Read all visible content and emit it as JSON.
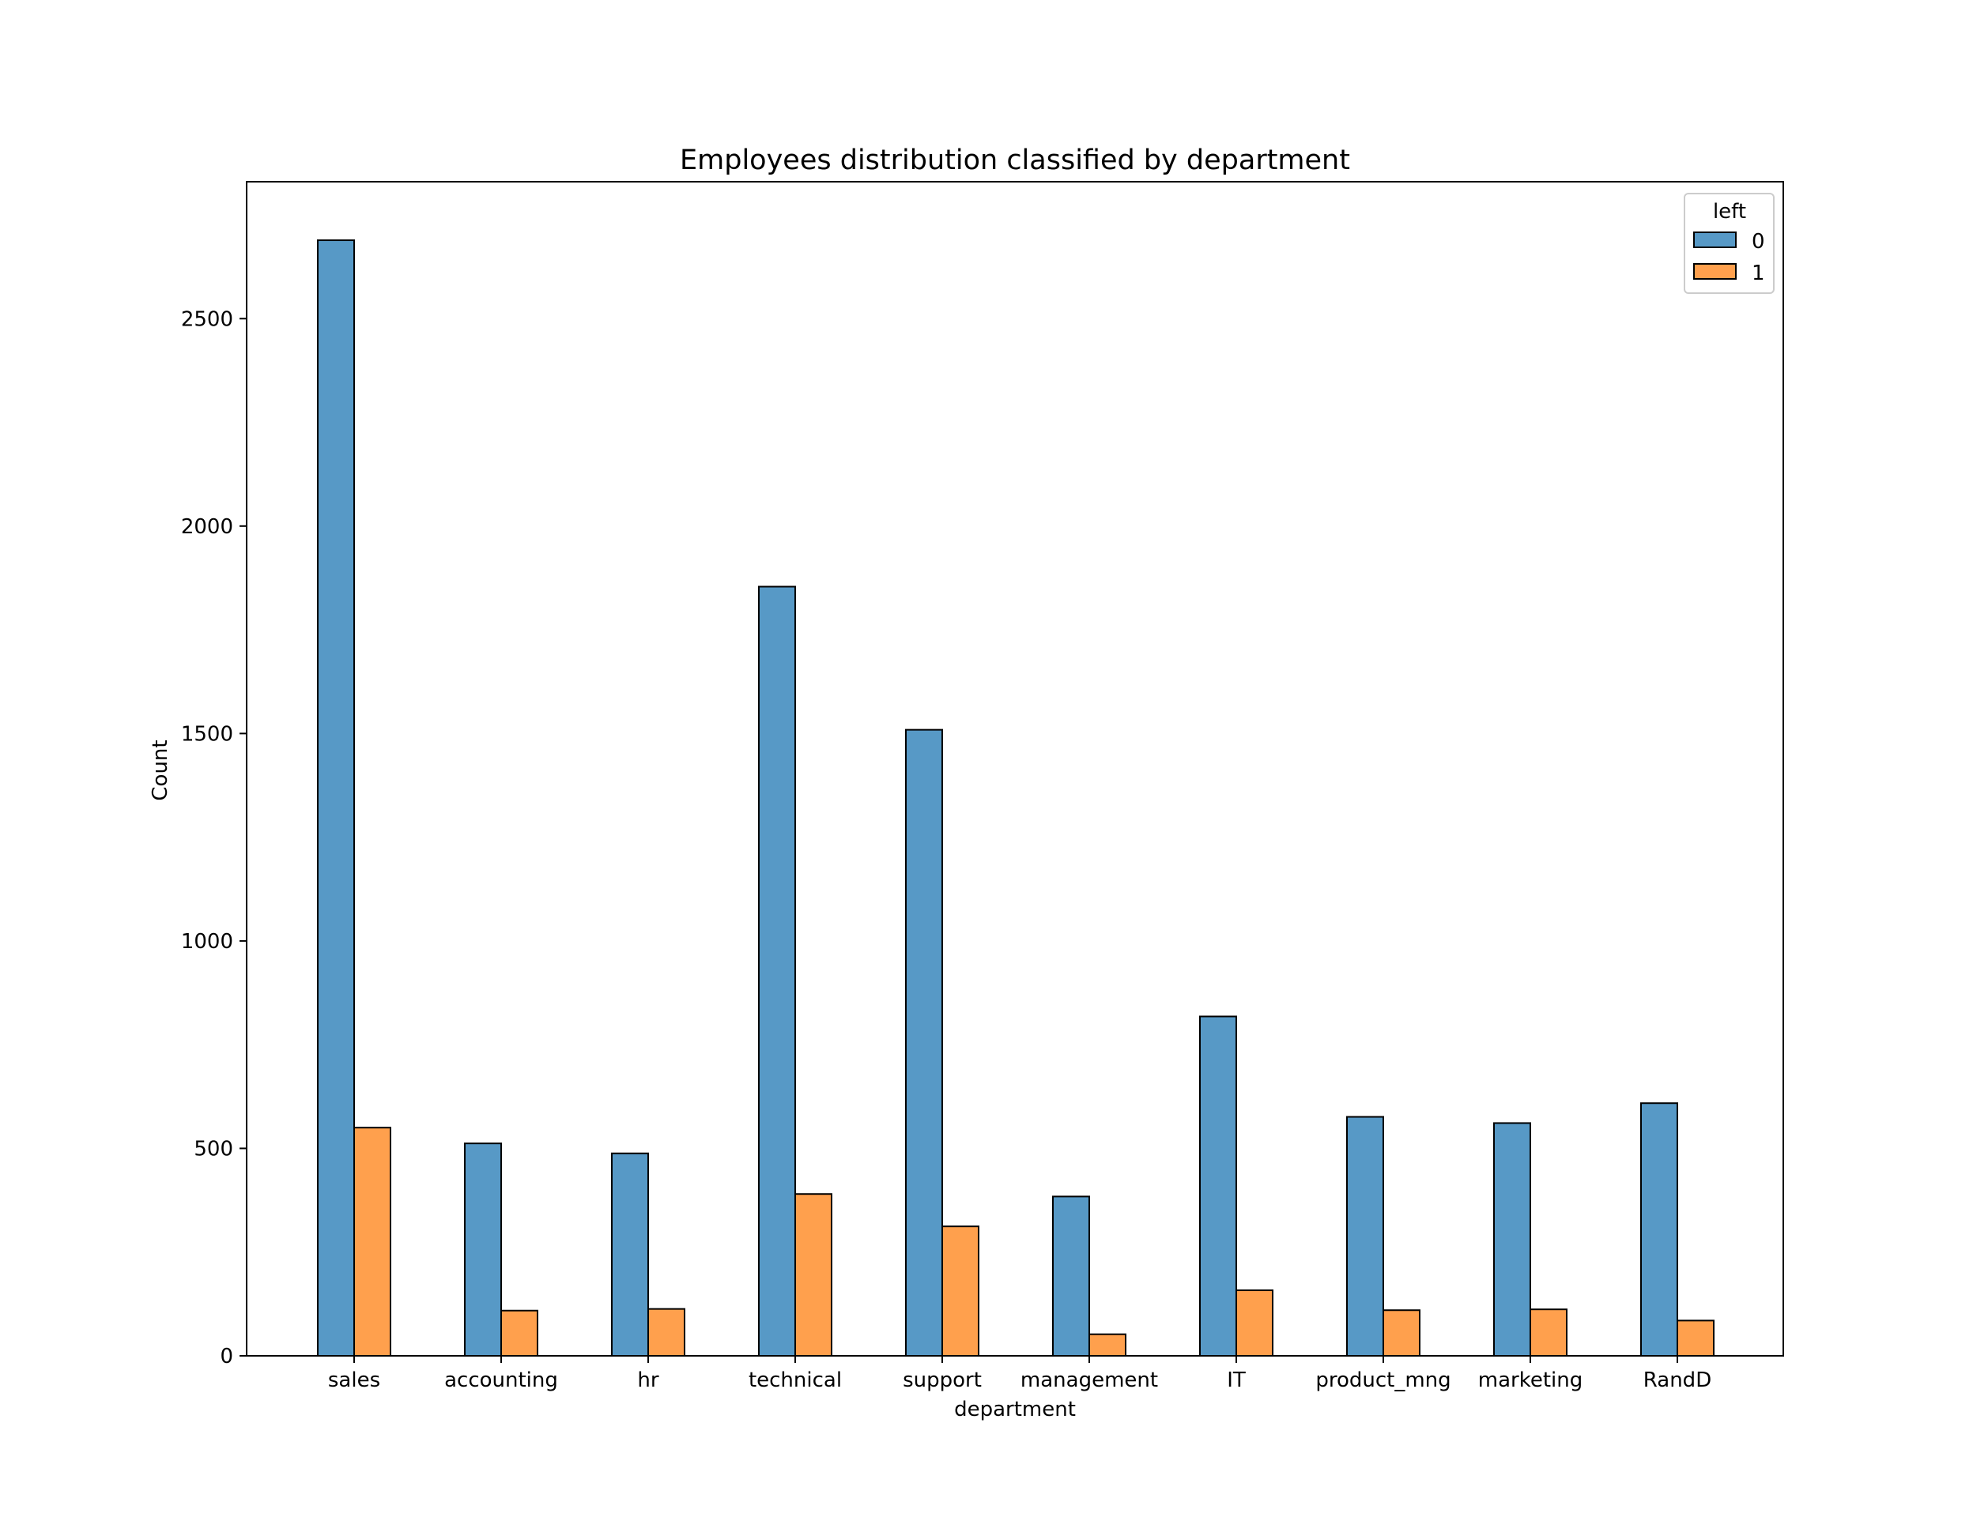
{
  "chart_data": {
    "type": "bar",
    "title": "Employees distribution classified by department",
    "xlabel": "department",
    "ylabel": "Count",
    "ylim": [
      0,
      2830
    ],
    "yticks": [
      0,
      500,
      1000,
      1500,
      2000,
      2500
    ],
    "grid": false,
    "legend": {
      "title": "left",
      "placement": "top-right"
    },
    "categories": [
      "sales",
      "accounting",
      "hr",
      "technical",
      "support",
      "management",
      "IT",
      "product_mng",
      "marketing",
      "RandD"
    ],
    "series": [
      {
        "name": "0",
        "color": "#5799c6",
        "values": [
          2689,
          512,
          488,
          1854,
          1509,
          384,
          818,
          576,
          561,
          609
        ]
      },
      {
        "name": "1",
        "color": "#ffa04d",
        "values": [
          550,
          109,
          113,
          390,
          312,
          52,
          158,
          110,
          112,
          85
        ]
      }
    ]
  }
}
